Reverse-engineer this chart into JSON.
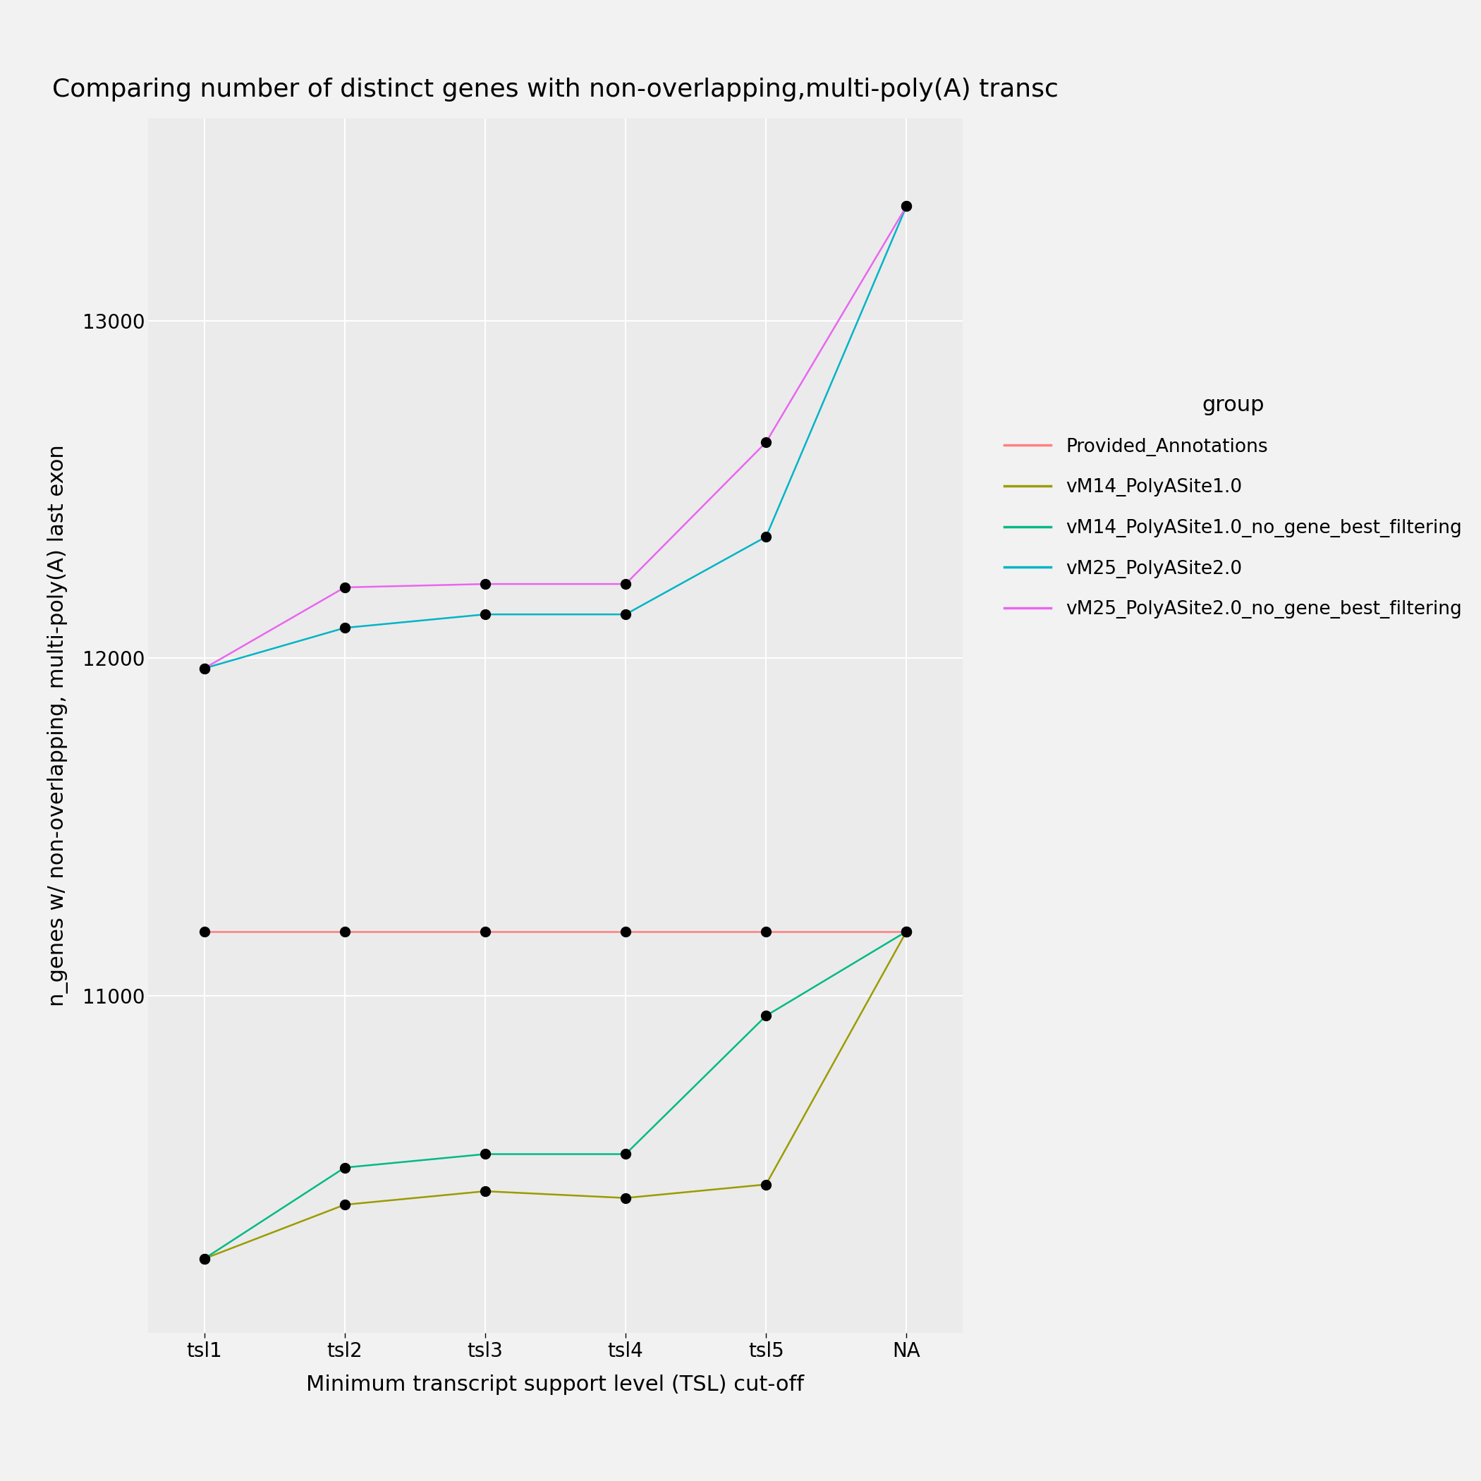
{
  "title": "Comparing number of distinct genes with non-overlapping,multi-poly(A) transc",
  "xlabel": "Minimum transcript support level (TSL) cut-off",
  "ylabel": "n_genes w/ non-overlapping, multi-poly(A) last exon",
  "x_labels": [
    "tsl1",
    "tsl2",
    "tsl3",
    "tsl4",
    "tsl5",
    "NA"
  ],
  "series": [
    {
      "name": "Provided_Annotations",
      "color": "#FF7F7F",
      "values": [
        11190,
        11190,
        11190,
        11190,
        11190,
        11190
      ]
    },
    {
      "name": "vM14_PolyASite1.0",
      "color": "#9B9B00",
      "values": [
        10220,
        10380,
        10420,
        10400,
        10440,
        11190
      ]
    },
    {
      "name": "vM14_PolyASite1.0_no_gene_best_filtering",
      "color": "#00BA84",
      "values": [
        10220,
        10490,
        10530,
        10530,
        10940,
        11190
      ]
    },
    {
      "name": "vM25_PolyASite2.0",
      "color": "#00B4C6",
      "values": [
        11970,
        12090,
        12130,
        12130,
        12360,
        13340
      ]
    },
    {
      "name": "vM25_PolyASite2.0_no_gene_best_filtering",
      "color": "#E966F0",
      "values": [
        11970,
        12210,
        12220,
        12220,
        12640,
        13340
      ]
    }
  ],
  "ylim": [
    10000,
    13600
  ],
  "yticks": [
    11000,
    12000,
    13000
  ],
  "background_color": "#EBEBEB",
  "grid_color": "#FFFFFF",
  "point_color": "#000000",
  "point_size": 10,
  "line_width": 1.8,
  "title_fontsize": 26,
  "label_fontsize": 22,
  "tick_fontsize": 20,
  "legend_fontsize": 19,
  "legend_title_fontsize": 22
}
